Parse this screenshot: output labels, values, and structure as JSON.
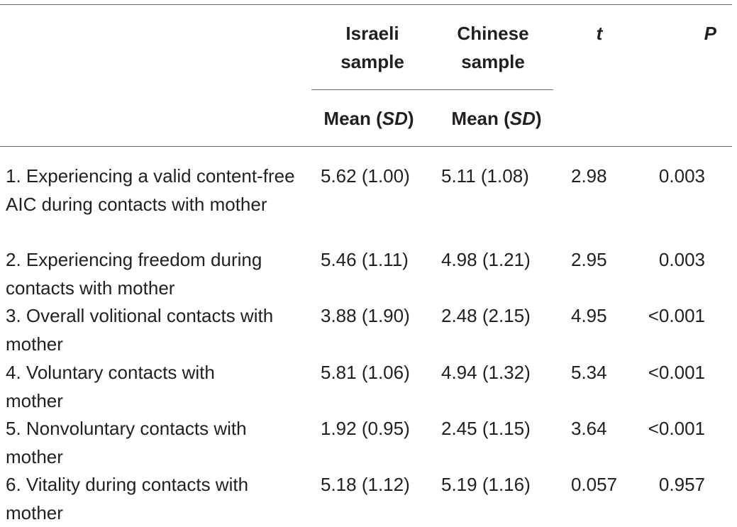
{
  "table": {
    "headers": {
      "israeli": "Israeli sample",
      "chinese": "Chinese sample",
      "t": "t",
      "p": "P",
      "mean_label": "Mean",
      "sd_label": "SD"
    },
    "rows": [
      {
        "label": "1. Experiencing a valid content-free AIC during contacts with mother",
        "israeli": "5.62 (1.00)",
        "chinese": "5.11 (1.08)",
        "t": "2.98",
        "p": "0.003"
      },
      {
        "label": "2. Experiencing freedom during contacts with mother",
        "israeli": "5.46 (1.11)",
        "chinese": "4.98 (1.21)",
        "t": "2.95",
        "p": "0.003"
      },
      {
        "label": "3. Overall volitional contacts with mother",
        "israeli": "3.88 (1.90)",
        "chinese": "2.48 (2.15)",
        "t": "4.95",
        "p": "<0.001"
      },
      {
        "label": "4. Voluntary contacts with mother",
        "israeli": "5.81 (1.06)",
        "chinese": "4.94 (1.32)",
        "t": "5.34",
        "p": "<0.001"
      },
      {
        "label": "5. Nonvoluntary contacts with mother",
        "israeli": "1.92 (0.95)",
        "chinese": "2.45 (1.15)",
        "t": "3.64",
        "p": "<0.001"
      },
      {
        "label": "6. Vitality during contacts with mother",
        "israeli": "5.18 (1.12)",
        "chinese": "5.19 (1.16)",
        "t": "0.057",
        "p": "0.957"
      }
    ]
  }
}
